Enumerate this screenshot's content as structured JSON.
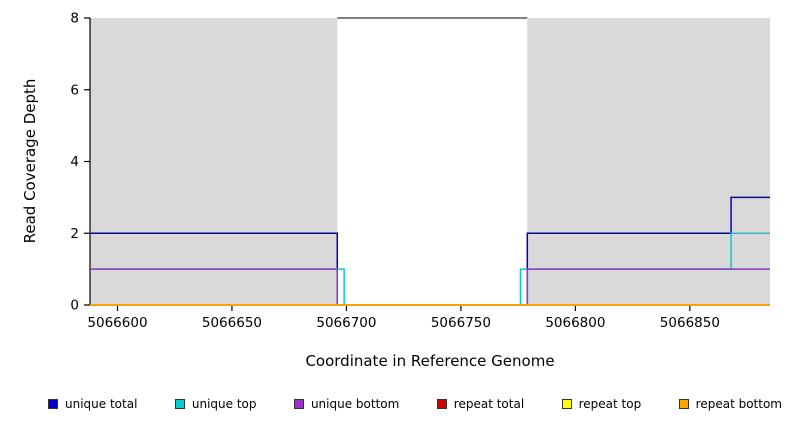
{
  "figure": {
    "background": "#FFFFFF"
  },
  "chart_data": {
    "type": "line",
    "subtype": "step-coverage",
    "title": "",
    "xlabel": "Coordinate in Reference Genome",
    "ylabel": "Read Coverage Depth",
    "xlim": [
      5066588,
      5066885
    ],
    "ylim": [
      0,
      8
    ],
    "x_ticks": [
      5066600,
      5066650,
      5066700,
      5066750,
      5066800,
      5066850
    ],
    "y_ticks": [
      0,
      2,
      4,
      6,
      8
    ],
    "grid": false,
    "legend_position": "bottom",
    "axis_color": "#000000",
    "shaded_regions": [
      {
        "x0": 5066588,
        "x1": 5066696,
        "color": "#D9D9D9"
      },
      {
        "x0": 5066779,
        "x1": 5066885,
        "color": "#D9D9D9"
      }
    ],
    "series": [
      {
        "name": "unique total",
        "color": "#0000CC",
        "segments": [
          {
            "x0": 5066588,
            "x1": 5066696,
            "y": 2
          },
          {
            "x0": 5066696,
            "x1": 5066779,
            "y": 0
          },
          {
            "x0": 5066779,
            "x1": 5066868,
            "y": 2
          },
          {
            "x0": 5066868,
            "x1": 5066885,
            "y": 3
          }
        ]
      },
      {
        "name": "unique top",
        "color": "#00CCCC",
        "segments": [
          {
            "x0": 5066588,
            "x1": 5066699,
            "y": 1
          },
          {
            "x0": 5066699,
            "x1": 5066776,
            "y": 0
          },
          {
            "x0": 5066776,
            "x1": 5066868,
            "y": 1
          },
          {
            "x0": 5066868,
            "x1": 5066885,
            "y": 2
          }
        ]
      },
      {
        "name": "unique bottom",
        "color": "#9933CC",
        "segments": [
          {
            "x0": 5066588,
            "x1": 5066696,
            "y": 1
          },
          {
            "x0": 5066696,
            "x1": 5066779,
            "y": 0
          },
          {
            "x0": 5066779,
            "x1": 5066885,
            "y": 1
          }
        ]
      },
      {
        "name": "repeat total",
        "color": "#CC0000",
        "segments": [
          {
            "x0": 5066588,
            "x1": 5066885,
            "y": 0
          }
        ]
      },
      {
        "name": "repeat top",
        "color": "#FFFF00",
        "segments": [
          {
            "x0": 5066588,
            "x1": 5066885,
            "y": 0
          }
        ]
      },
      {
        "name": "repeat bottom",
        "color": "#FFA500",
        "segments": [
          {
            "x0": 5066588,
            "x1": 5066885,
            "y": 0
          }
        ]
      }
    ]
  }
}
